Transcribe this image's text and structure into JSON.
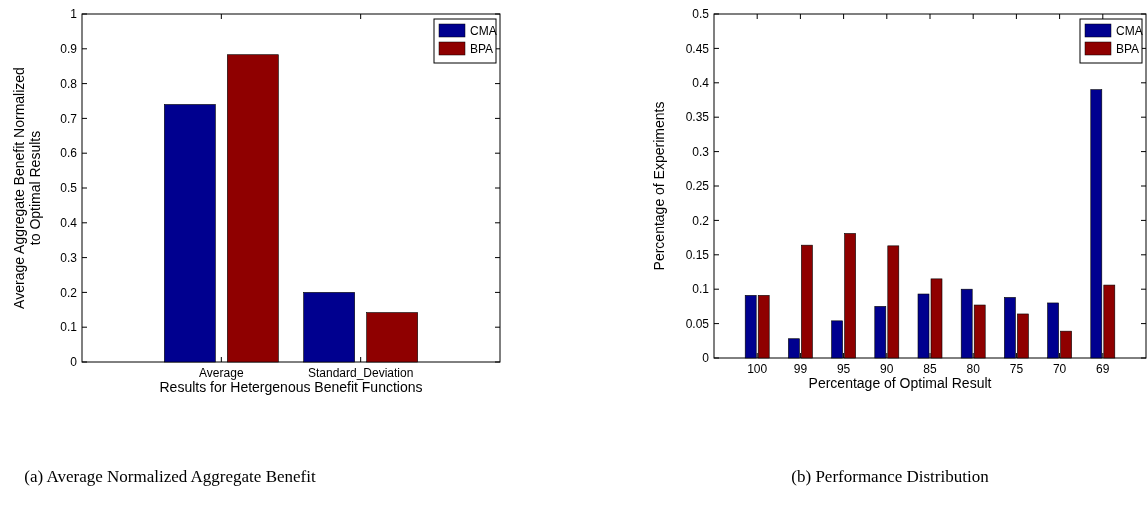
{
  "chart_data": [
    {
      "type": "bar",
      "title": "(a) Average Normalized Aggregate Benefit",
      "xlabel": "Results for Hetergenous Benefit Functions",
      "ylabel": "Average Aggregate Benefit Normalized\nto Optimal Results",
      "categories": [
        "Average",
        "Standard_Deviation"
      ],
      "series": [
        {
          "name": "CMA",
          "color": "#00008f",
          "values": [
            0.74,
            0.2
          ]
        },
        {
          "name": "BPA",
          "color": "#8f0000",
          "values": [
            0.883,
            0.142
          ]
        }
      ],
      "ylim": [
        0,
        1
      ],
      "yticks": [
        0,
        0.1,
        0.2,
        0.3,
        0.4,
        0.5,
        0.6,
        0.7,
        0.8,
        0.9,
        1
      ],
      "legend": "top right"
    },
    {
      "type": "bar",
      "title": "(b) Performance Distribution",
      "xlabel": "Percentage of Optimal Result",
      "ylabel": "Percentage of Experiments",
      "categories": [
        "100",
        "99",
        "95",
        "90",
        "85",
        "80",
        "75",
        "70",
        "69"
      ],
      "series": [
        {
          "name": "CMA",
          "color": "#00008f",
          "values": [
            0.091,
            0.028,
            0.054,
            0.075,
            0.093,
            0.1,
            0.088,
            0.08,
            0.39
          ]
        },
        {
          "name": "BPA",
          "color": "#8f0000",
          "values": [
            0.091,
            0.164,
            0.181,
            0.163,
            0.115,
            0.077,
            0.064,
            0.039,
            0.106
          ]
        }
      ],
      "ylim": [
        0,
        0.5
      ],
      "yticks": [
        0,
        0.05,
        0.1,
        0.15,
        0.2,
        0.25,
        0.3,
        0.35,
        0.4,
        0.45,
        0.5
      ],
      "legend": "top right"
    }
  ]
}
